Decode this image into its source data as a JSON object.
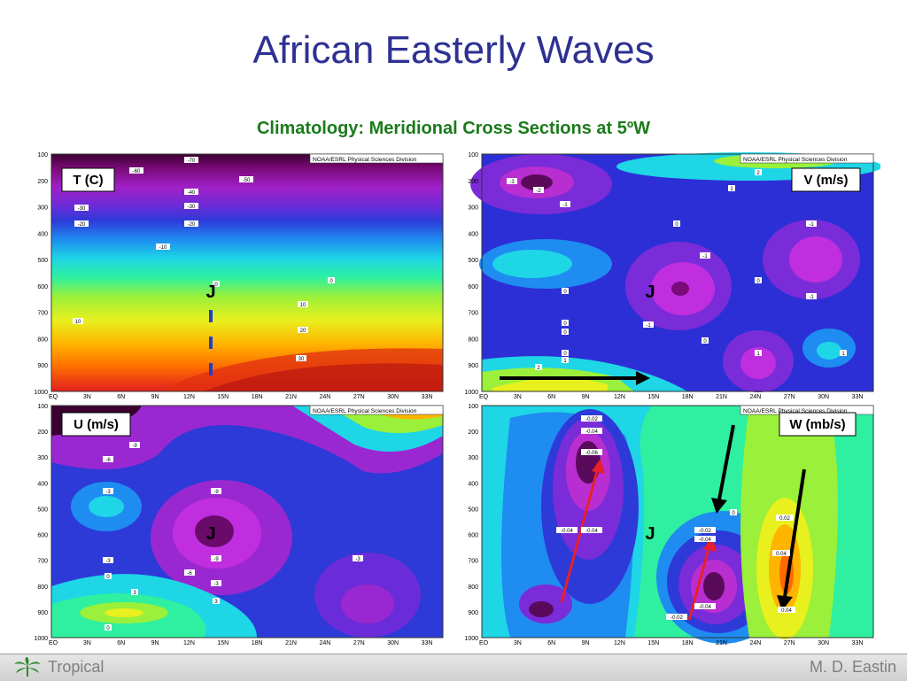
{
  "slide": {
    "title": "African Easterly Waves",
    "subtitle": "Climatology:   Meridional Cross Sections at 5ºW"
  },
  "footer": {
    "left_text": "Tropical",
    "right_text": "M. D. Eastin"
  },
  "colors": {
    "title": "#2e3192",
    "subtitle": "#1b7a1b",
    "arrow_black": "#000000",
    "arrow_red": "#e8202a",
    "marker_blue": "#1f3fd0"
  },
  "chart_data": [
    {
      "type": "heatmap",
      "label": "T (C)",
      "credit": "NOAA/ESRL Physical Sciences Division",
      "x_ticks": [
        "EQ",
        "3N",
        "6N",
        "9N",
        "12N",
        "15N",
        "18N",
        "21N",
        "24N",
        "27N",
        "30N",
        "33N"
      ],
      "y_ticks": [
        "100",
        "200",
        "300",
        "400",
        "500",
        "600",
        "700",
        "800",
        "900",
        "1000"
      ],
      "contour_labels": [
        "-70",
        "-60",
        "-50",
        "-40",
        "-30",
        "-30",
        "-20",
        "-20",
        "-10",
        "0",
        "0",
        "10",
        "10",
        "20",
        "30"
      ],
      "jet_marker": "J"
    },
    {
      "type": "heatmap",
      "label": "V (m/s)",
      "credit": "NOAA/ESRL Physical Sciences Division",
      "x_ticks": [
        "EQ",
        "3N",
        "6N",
        "9N",
        "12N",
        "15N",
        "18N",
        "21N",
        "24N",
        "27N",
        "30N",
        "33N"
      ],
      "y_ticks": [
        "100",
        "200",
        "300",
        "400",
        "500",
        "600",
        "700",
        "800",
        "900",
        "1000"
      ],
      "contour_labels": [
        "-3",
        "-2",
        "-1",
        "2",
        "1",
        "0",
        "-1",
        "-1",
        "0",
        "0",
        "-1",
        "0",
        "-1",
        "0",
        "0",
        "0",
        "1",
        "1",
        "1",
        "2"
      ],
      "jet_marker": "J"
    },
    {
      "type": "heatmap",
      "label": "U (m/s)",
      "credit": "NOAA/ESRL Physical Sciences Division",
      "x_ticks": [
        "EQ",
        "3N",
        "6N",
        "9N",
        "12N",
        "15N",
        "18N",
        "21N",
        "24N",
        "27N",
        "30N",
        "33N"
      ],
      "y_ticks": [
        "100",
        "200",
        "300",
        "400",
        "500",
        "600",
        "700",
        "800",
        "900",
        "1000"
      ],
      "contour_labels": [
        "-9",
        "-6",
        "-3",
        "-9",
        "-9",
        "-6",
        "-3",
        "-3",
        "0",
        "-3",
        "3",
        "3",
        "0"
      ],
      "jet_marker": "J"
    },
    {
      "type": "heatmap",
      "label": "W (mb/s)",
      "credit": "NOAA/ESRL Physical Sciences Division",
      "x_ticks": [
        "EQ",
        "3N",
        "6N",
        "9N",
        "12N",
        "15N",
        "18N",
        "21N",
        "24N",
        "27N",
        "30N",
        "33N"
      ],
      "y_ticks": [
        "100",
        "200",
        "300",
        "400",
        "500",
        "600",
        "700",
        "800",
        "900",
        "1000"
      ],
      "contour_labels": [
        "-0.02",
        "-0.04",
        "-0.06",
        "-0.04",
        "-0.04",
        "0",
        "-0.02",
        "-0.04",
        "-0.04",
        "-0.02",
        "0.02",
        "0.04",
        "0.04"
      ],
      "jet_marker": "J"
    }
  ]
}
